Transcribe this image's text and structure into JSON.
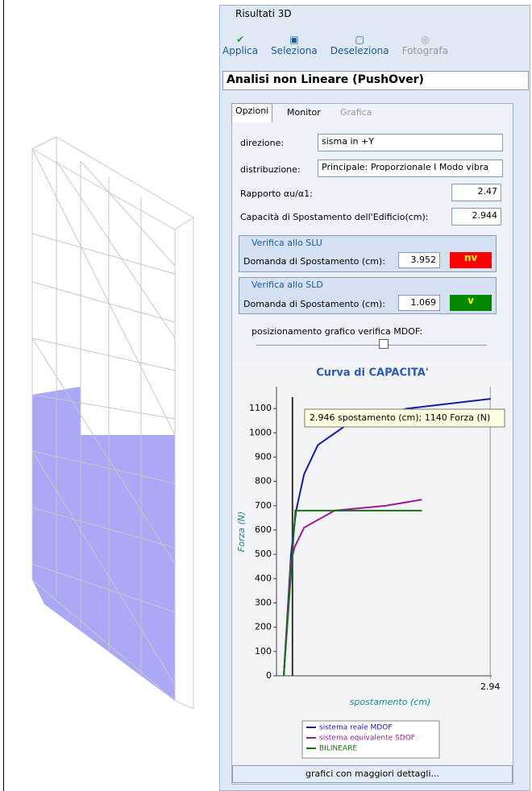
{
  "window": {
    "title": "Risultati 3D"
  },
  "toolbar": {
    "buttons": [
      "Applica",
      "Seleziona",
      "Deseleziona",
      "Fotografa"
    ]
  },
  "analysis_select": "Analisi non Lineare (PushOver)",
  "tabs": [
    "Opzioni",
    "Monitor",
    "Grafica"
  ],
  "options": {
    "direzione_label": "direzione:",
    "direzione_value": "sisma in +Y",
    "distribuzione_label": "distribuzione:",
    "distribuzione_value": "Principale: Proporzionale I Modo vibra",
    "rapporto_label": "Rapporto αu/α1:",
    "rapporto_value": "2.47",
    "capacita_label": "Capacità di Spostamento dell'Edificio(cm):",
    "capacita_value": "2.944"
  },
  "verifica_slu": {
    "title": "Verifica allo SLU",
    "label": "Domanda di Spostamento (cm):",
    "value": "3.952",
    "result": "nv"
  },
  "verifica_sld": {
    "title": "Verifica allo SLD",
    "label": "Domanda di Spostamento (cm):",
    "value": "1.069",
    "result": "v"
  },
  "mdof_label": "posizionamento grafico verifica MDOF:",
  "chart": {
    "type": "line",
    "title": "Curva di CAPACITA'",
    "x_label": "spostamento (cm)",
    "y_label": "Forza (N)",
    "tooltip": "2.946 spostamento (cm); 1140 Forza (N)",
    "xlim": [
      0,
      2.96
    ],
    "xticks": [
      2.94
    ],
    "ylim": [
      0,
      1190
    ],
    "yticks": [
      0,
      100,
      200,
      300,
      400,
      500,
      600,
      700,
      800,
      900,
      1000,
      1100
    ],
    "vertical_line_x": 0.22,
    "series": [
      {
        "name": "sistema reale MDOF",
        "color": "#1a1aa8",
        "x": [
          0.1,
          0.2,
          0.27,
          0.38,
          0.57,
          1.0,
          1.8,
          2.946
        ],
        "values": [
          0,
          500,
          680,
          830,
          950,
          1040,
          1100,
          1140
        ]
      },
      {
        "name": "sistema equivalente SDOF",
        "color": "#9a1a9a",
        "x": [
          0.1,
          0.2,
          0.25,
          0.38,
          0.8,
          1.5,
          2.0
        ],
        "values": [
          0,
          470,
          530,
          610,
          680,
          700,
          725
        ]
      },
      {
        "name": "BILINEARE",
        "color": "#1a6e1a",
        "x": [
          0.1,
          0.26,
          2.0
        ],
        "values": [
          0,
          680,
          680
        ]
      }
    ]
  },
  "footer_button": "grafici con maggiori dettagli..."
}
